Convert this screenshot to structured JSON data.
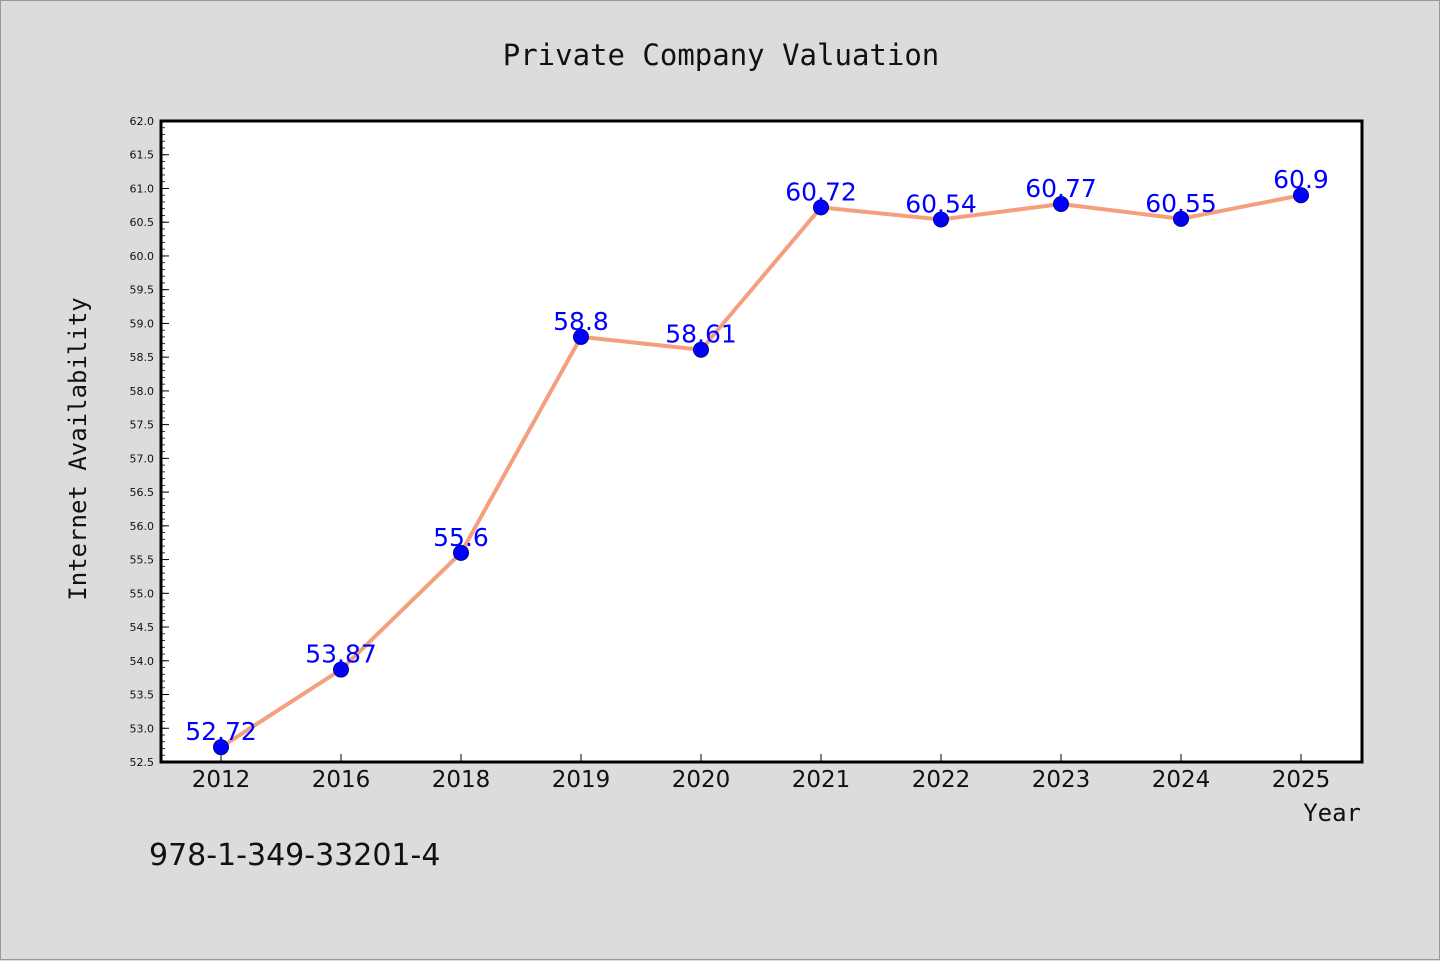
{
  "colors": {
    "background": "#dcdcdc",
    "plot_background": "#ffffff",
    "line": "#f4a07e",
    "marker": "#0000ff",
    "label": "#0000ff"
  },
  "chart_data": {
    "type": "line",
    "title": "Private Company Valuation",
    "xlabel": "Year",
    "ylabel": "Internet Availability",
    "categories": [
      "2012",
      "2016",
      "2018",
      "2019",
      "2020",
      "2021",
      "2022",
      "2023",
      "2024",
      "2025"
    ],
    "series": [
      {
        "values": [
          52.72,
          53.87,
          55.6,
          58.8,
          58.61,
          60.72,
          60.54,
          60.77,
          60.55,
          60.9
        ],
        "labels": [
          "52.72",
          "53.87",
          "55.6",
          "58.8",
          "58.61",
          "60.72",
          "60.54",
          "60.77",
          "60.55",
          "60.9"
        ]
      }
    ],
    "ylim": [
      52.5,
      62.0
    ],
    "yticks": [
      "52.5",
      "53.0",
      "53.5",
      "54.0",
      "54.5",
      "55.0",
      "55.5",
      "56.0",
      "56.5",
      "57.0",
      "57.5",
      "58.0",
      "58.5",
      "59.0",
      "59.5",
      "60.0",
      "60.5",
      "61.0",
      "61.5",
      "62.0"
    ],
    "grid": false,
    "legend": "none"
  },
  "annotation": "978-1-349-33201-4"
}
